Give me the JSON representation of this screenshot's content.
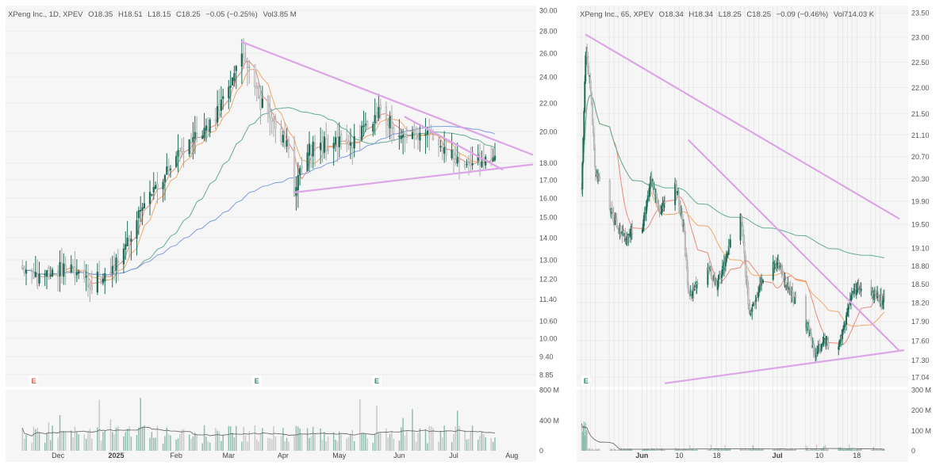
{
  "colors": {
    "up": "#1f6e5a",
    "down": "#a9a9a9",
    "pane_bg": "#f6f6f6",
    "frame": "#ffffff",
    "ma_fast": "#e98b7e",
    "ma_mid": "#efaa6a",
    "ma_slow": "#62ad94",
    "ma_long": "#7f9be3",
    "trendline": "#dca6e6",
    "vol_up": "#8cbdaf",
    "vol_down": "#c8c8c8",
    "vol_ma": "#6d6d6d",
    "earnings_down": "#e05a4b",
    "earnings_up": "#2e8b6f"
  },
  "chart_data": [
    {
      "type": "candlestick",
      "header": {
        "symbol": "XPeng Inc., 1D, XPEV",
        "open_label": "O",
        "open": "18.35",
        "high_label": "H",
        "high": "18.51",
        "low_label": "L",
        "low": "18.15",
        "close_label": "C",
        "close": "18.25",
        "change": "−0.05 (−0.25%)",
        "vol_label": "Vol",
        "vol": "3.85 M"
      },
      "y_ticks": [
        "30.00",
        "28.00",
        "26.00",
        "24.00",
        "22.00",
        "20.00",
        "18.00",
        "17.00",
        "16.00",
        "15.00",
        "14.00",
        "13.00",
        "12.20",
        "11.40",
        "10.60",
        "10.00",
        "9.40",
        "8.85"
      ],
      "y_scale": "log",
      "ylim": [
        8.5,
        30.5
      ],
      "x_ticks": [
        "Dec",
        "2025",
        "Feb",
        "Mar",
        "Apr",
        "May",
        "Jun",
        "Jul",
        "Aug"
      ],
      "x_ticks_bold": [
        "2025"
      ],
      "volume_ticks": [
        "800 M",
        "400 M",
        "0"
      ],
      "volume_max": 800,
      "earnings_markers": [
        {
          "label": "E",
          "date": "2024-11-19",
          "kind": "down"
        },
        {
          "label": "E",
          "date": "2025-03-18",
          "kind": "up"
        },
        {
          "label": "E",
          "date": "2025-05-21",
          "kind": "up"
        }
      ],
      "keypoints": [
        [
          "2024-11-13",
          12.8
        ],
        [
          "2024-11-21",
          12.2
        ],
        [
          "2024-12-02",
          12.6
        ],
        [
          "2024-12-13",
          12.5
        ],
        [
          "2024-12-20",
          12.0
        ],
        [
          "2025-01-02",
          12.8
        ],
        [
          "2025-01-13",
          14.8
        ],
        [
          "2025-01-22",
          16.3
        ],
        [
          "2025-01-31",
          17.8
        ],
        [
          "2025-02-10",
          19.2
        ],
        [
          "2025-02-24",
          21.2
        ],
        [
          "2025-03-04",
          23.2
        ],
        [
          "2025-03-10",
          26.5
        ],
        [
          "2025-03-20",
          22.0
        ],
        [
          "2025-03-28",
          20.2
        ],
        [
          "2025-04-04",
          18.9
        ],
        [
          "2025-04-07",
          16.5
        ],
        [
          "2025-04-14",
          18.8
        ],
        [
          "2025-04-24",
          19.2
        ],
        [
          "2025-05-09",
          19.3
        ],
        [
          "2025-05-21",
          21.3
        ],
        [
          "2025-06-04",
          19.8
        ],
        [
          "2025-06-16",
          19.9
        ],
        [
          "2025-06-27",
          18.6
        ],
        [
          "2025-07-10",
          18.0
        ],
        [
          "2025-07-23",
          18.25
        ]
      ],
      "trendlines": [
        {
          "from": [
            "2025-03-10",
            27.0
          ],
          "to": [
            "2025-08-12",
            18.5
          ]
        },
        {
          "from": [
            "2025-04-07",
            16.3
          ],
          "to": [
            "2025-08-12",
            17.9
          ]
        },
        {
          "from": [
            "2025-06-05",
            21.0
          ],
          "to": [
            "2025-07-27",
            17.6
          ]
        }
      ]
    },
    {
      "type": "candlestick",
      "header": {
        "symbol": "XPeng Inc., 65, XPEV",
        "open_label": "O",
        "open": "18.34",
        "high_label": "H",
        "high": "18.34",
        "low_label": "L",
        "low": "18.25",
        "close_label": "C",
        "close": "18.25",
        "change": "−0.09 (−0.46%)",
        "vol_label": "Vol",
        "vol": "714.03 K"
      },
      "y_ticks": [
        "23.50",
        "23.00",
        "22.50",
        "22.00",
        "21.50",
        "21.10",
        "20.70",
        "20.30",
        "19.90",
        "19.50",
        "19.10",
        "18.80",
        "18.50",
        "18.20",
        "17.90",
        "17.60",
        "17.30",
        "17.04"
      ],
      "y_scale": "log",
      "ylim": [
        16.9,
        23.65
      ],
      "x_ticks": [
        "Jun",
        "10",
        "18",
        "Jul",
        "10",
        "18"
      ],
      "x_ticks_bold": [
        "Jun",
        "Jul"
      ],
      "volume_ticks": [
        "300 M",
        "200 M",
        "100 M",
        "0"
      ],
      "volume_max": 300,
      "earnings_markers": [
        {
          "label": "E",
          "date": "2025-05-21",
          "kind": "up"
        }
      ],
      "keypoints": [
        [
          "2025-05-20",
          19.9
        ],
        [
          "2025-05-21",
          22.8
        ],
        [
          "2025-05-22",
          22.0
        ],
        [
          "2025-05-23",
          20.4
        ],
        [
          "2025-05-27",
          19.6
        ],
        [
          "2025-05-29",
          19.3
        ],
        [
          "2025-06-02",
          19.45
        ],
        [
          "2025-06-04",
          20.3
        ],
        [
          "2025-06-06",
          19.7
        ],
        [
          "2025-06-09",
          20.3
        ],
        [
          "2025-06-11",
          19.4
        ],
        [
          "2025-06-12",
          18.3
        ],
        [
          "2025-06-16",
          18.8
        ],
        [
          "2025-06-18",
          18.5
        ],
        [
          "2025-06-20",
          18.9
        ],
        [
          "2025-06-23",
          19.8
        ],
        [
          "2025-06-25",
          18.0
        ],
        [
          "2025-06-27",
          18.4
        ],
        [
          "2025-07-01",
          18.9
        ],
        [
          "2025-07-03",
          18.5
        ],
        [
          "2025-07-07",
          17.9
        ],
        [
          "2025-07-09",
          17.4
        ],
        [
          "2025-07-11",
          17.6
        ],
        [
          "2025-07-14",
          17.45
        ],
        [
          "2025-07-16",
          18.0
        ],
        [
          "2025-07-17",
          18.4
        ],
        [
          "2025-07-21",
          18.35
        ],
        [
          "2025-07-23",
          18.25
        ]
      ],
      "trendlines": [
        {
          "from": [
            "2025-05-21",
            23.05
          ],
          "to": [
            "2025-07-27",
            19.6
          ]
        },
        {
          "from": [
            "2025-06-12",
            21.0
          ],
          "to": [
            "2025-07-27",
            17.45
          ]
        },
        {
          "from": [
            "2025-06-07",
            16.95
          ],
          "to": [
            "2025-07-28",
            17.45
          ]
        }
      ]
    }
  ]
}
